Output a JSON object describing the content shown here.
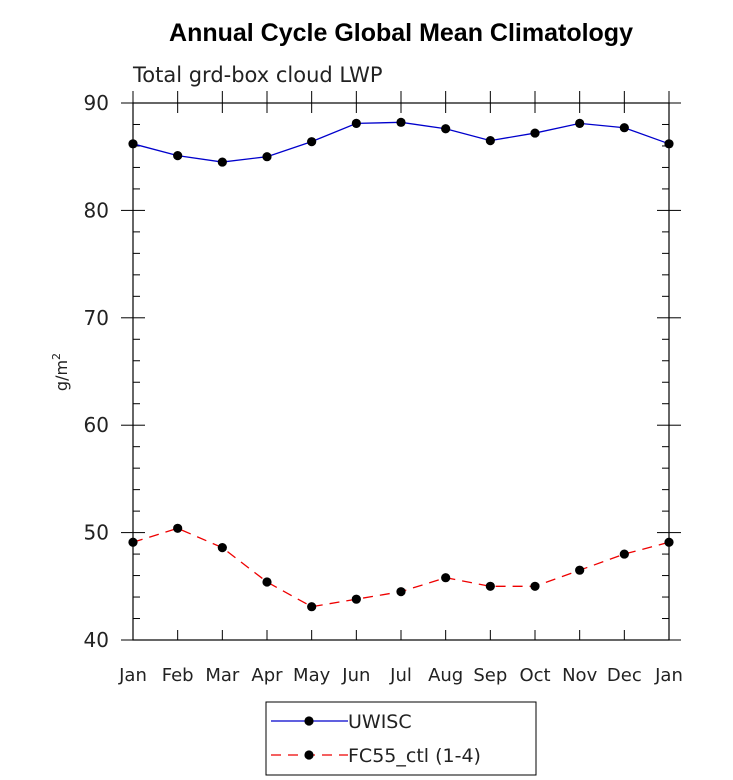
{
  "chart_data": {
    "type": "line",
    "title": "Annual Cycle Global Mean Climatology",
    "subtitle": "Total grd-box cloud LWP",
    "xlabel": "",
    "ylabel": "g/m",
    "ylabel_superscript": "2",
    "categories": [
      "Jan",
      "Feb",
      "Mar",
      "Apr",
      "May",
      "Jun",
      "Jul",
      "Aug",
      "Sep",
      "Oct",
      "Nov",
      "Dec",
      "Jan"
    ],
    "ylim": [
      40,
      90
    ],
    "yticks": [
      40,
      50,
      60,
      70,
      80,
      90
    ],
    "grid": false,
    "legend_position": "bottom",
    "series": [
      {
        "name": "UWISC",
        "color": "#0000cc",
        "line_style": "solid",
        "marker": "filled-circle",
        "values": [
          86.2,
          85.1,
          84.5,
          85.0,
          86.4,
          88.1,
          88.2,
          87.6,
          86.5,
          87.2,
          88.1,
          87.7,
          86.2
        ]
      },
      {
        "name": "FC55_ctl (1-4)",
        "color": "#ee0000",
        "line_style": "dashed",
        "marker": "filled-circle",
        "values": [
          49.1,
          50.4,
          48.6,
          45.4,
          43.1,
          43.8,
          44.5,
          45.8,
          45.0,
          45.0,
          46.5,
          48.0,
          49.1
        ]
      }
    ]
  }
}
